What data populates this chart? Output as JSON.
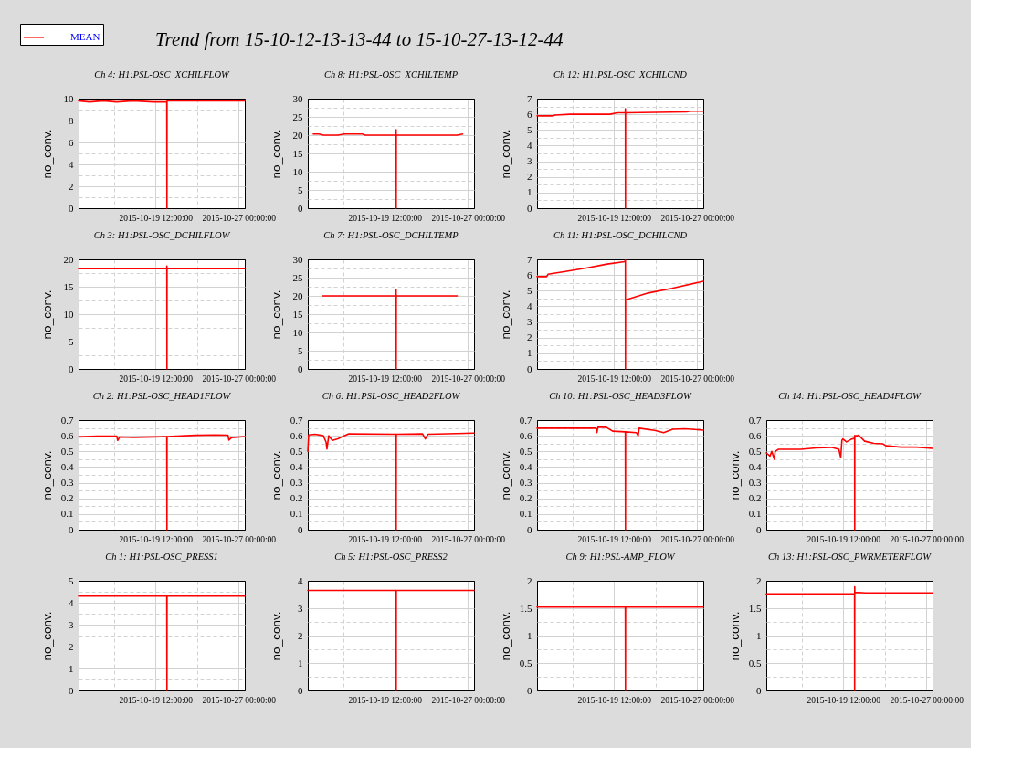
{
  "chart_data": [
    {
      "type": "other",
      "title": "Trend from 15-10-12-13-13-44 to 15-10-27-13-12-44"
    },
    {
      "type": "line",
      "title": "Ch 4: H1:PSL-OSC_XCHILFLOW",
      "ylabel": "no_conv.",
      "legend": "top left",
      "grid": true,
      "xlim": [
        "2015-10-12T13:13",
        "2015-10-27T13:12"
      ],
      "xticks": [
        {
          "value": "2015-10-15T18:00",
          "label": null
        },
        {
          "value": "2015-10-19T12:00",
          "label": "2015-10-19 12:00:00"
        },
        {
          "value": "2015-10-23T06:00",
          "label": null
        },
        {
          "value": "2015-10-27T00:00",
          "label": "2015-10-27 00:00:00"
        }
      ],
      "ylim": [
        0,
        10
      ],
      "yticks": [
        0,
        {
          "value": 1,
          "label": null
        },
        2,
        {
          "value": 3,
          "label": null
        },
        4,
        {
          "value": 5,
          "label": null
        },
        6,
        {
          "value": 7,
          "label": null
        },
        8,
        {
          "value": 9,
          "label": null
        },
        10
      ],
      "x": [
        "2015-10-12T13:13",
        "2015-10-13T12:55",
        "2015-10-14T18:30",
        "2015-10-16T00:00",
        "2015-10-17T11:35",
        "2015-10-19T07:00",
        "2015-10-20T12:20",
        "2015-10-20T12:40",
        "2015-10-20T12:50",
        "2015-10-22T13:55",
        "2015-10-24T17:13",
        "2015-10-26T08:35",
        "2015-10-27T13:12"
      ],
      "series": [
        {
          "name": "MEAN",
          "color": "#ff0000",
          "values": [
            9.8,
            9.7,
            9.8,
            9.7,
            9.8,
            9.7,
            9.7,
            0,
            9.8,
            9.8,
            9.8,
            9.8,
            9.8
          ]
        }
      ]
    },
    {
      "type": "line",
      "title": "Ch 8: H1:PSL-OSC_XCHILTEMP",
      "ylabel": "no_conv.",
      "grid": true,
      "xlim": [
        "2015-10-12T13:13",
        "2015-10-27T13:12"
      ],
      "xticks": [
        {
          "value": "2015-10-15T18:00",
          "label": null
        },
        {
          "value": "2015-10-19T12:00",
          "label": "2015-10-19 12:00:00"
        },
        {
          "value": "2015-10-23T06:00",
          "label": null
        },
        {
          "value": "2015-10-27T00:00",
          "label": "2015-10-27 00:00:00"
        }
      ],
      "ylim": [
        0,
        30
      ],
      "yticks": [
        0,
        {
          "value": 2.5,
          "label": null
        },
        5,
        {
          "value": 7.5,
          "label": null
        },
        10,
        {
          "value": 12.5,
          "label": null
        },
        15,
        {
          "value": 17.5,
          "label": null
        },
        20,
        {
          "value": 22.5,
          "label": null
        },
        25,
        {
          "value": 27.5,
          "label": null
        },
        30
      ],
      "x": [
        "2015-10-13T01:00",
        "2015-10-13T12:55",
        "2015-10-13T22:45",
        "2015-10-15T06:20",
        "2015-10-15T20:07",
        "2015-10-17T11:35",
        "2015-10-17T17:30",
        "2015-10-20T12:20",
        "2015-10-20T12:30",
        "2015-10-20T12:40",
        "2015-10-20T12:50",
        "2015-10-26T00:45",
        "2015-10-26T12:30"
      ],
      "series": [
        {
          "color": "#ff0000",
          "values": [
            20.3,
            20.3,
            20,
            20,
            20.3,
            20.3,
            20,
            20,
            21.5,
            0,
            20,
            20,
            20.3
          ]
        }
      ]
    },
    {
      "type": "line",
      "title": "Ch 12: H1:PSL-OSC_XCHILCND",
      "ylabel": "no_conv.",
      "grid": true,
      "xlim": [
        "2015-10-12T13:13",
        "2015-10-27T13:12"
      ],
      "xticks": [
        {
          "value": "2015-10-15T18:00",
          "label": null
        },
        {
          "value": "2015-10-19T12:00",
          "label": "2015-10-19 12:00:00"
        },
        {
          "value": "2015-10-23T06:00",
          "label": null
        },
        {
          "value": "2015-10-27T00:00",
          "label": "2015-10-27 00:00:00"
        }
      ],
      "ylim": [
        0,
        7
      ],
      "yticks": [
        0,
        {
          "value": 0.5,
          "label": null
        },
        1,
        {
          "value": 1.5,
          "label": null
        },
        2,
        {
          "value": 2.5,
          "label": null
        },
        3,
        {
          "value": 3.5,
          "label": null
        },
        4,
        {
          "value": 4.5,
          "label": null
        },
        5,
        {
          "value": 5.5,
          "label": null
        },
        6,
        {
          "value": 6.5,
          "label": null
        },
        7
      ],
      "x": [
        "2015-10-12T13:13",
        "2015-10-13T22:45",
        "2015-10-14T04:45",
        "2015-10-15T12:13",
        "2015-10-19T03:00",
        "2015-10-19T18:50",
        "2015-10-20T12:20",
        "2015-10-20T12:30",
        "2015-10-20T12:40",
        "2015-10-20T12:50",
        "2015-10-26T00:45",
        "2015-10-26T08:35",
        "2015-10-27T13:12"
      ],
      "series": [
        {
          "color": "#ff0000",
          "values": [
            5.9,
            5.9,
            5.95,
            6,
            6,
            6.1,
            6.1,
            6.35,
            0,
            6.1,
            6.15,
            6.2,
            6.2
          ]
        }
      ]
    },
    {
      "type": "line",
      "title": "Ch 3: H1:PSL-OSC_DCHILFLOW",
      "ylabel": "no_conv.",
      "grid": true,
      "xlim": [
        "2015-10-12T13:13",
        "2015-10-27T13:12"
      ],
      "xticks": [
        {
          "value": "2015-10-15T18:00",
          "label": null
        },
        {
          "value": "2015-10-19T12:00",
          "label": "2015-10-19 12:00:00"
        },
        {
          "value": "2015-10-23T06:00",
          "label": null
        },
        {
          "value": "2015-10-27T00:00",
          "label": "2015-10-27 00:00:00"
        }
      ],
      "ylim": [
        0,
        20
      ],
      "yticks": [
        0,
        {
          "value": 2.5,
          "label": null
        },
        5,
        {
          "value": 7.5,
          "label": null
        },
        10,
        {
          "value": 12.5,
          "label": null
        },
        15,
        {
          "value": 17.5,
          "label": null
        },
        20
      ],
      "x": [
        "2015-10-12T13:13",
        "2015-10-20T12:20",
        "2015-10-20T12:30",
        "2015-10-20T12:40",
        "2015-10-20T12:50",
        "2015-10-27T13:12"
      ],
      "series": [
        {
          "color": "#ff0000",
          "values": [
            18.3,
            18.3,
            18.8,
            0,
            18.3,
            18.3
          ]
        }
      ]
    },
    {
      "type": "line",
      "title": "Ch 7: H1:PSL-OSC_DCHILTEMP",
      "ylabel": "no_conv.",
      "grid": true,
      "xlim": [
        "2015-10-12T13:13",
        "2015-10-27T13:12"
      ],
      "xticks": [
        {
          "value": "2015-10-15T18:00",
          "label": null
        },
        {
          "value": "2015-10-19T12:00",
          "label": "2015-10-19 12:00:00"
        },
        {
          "value": "2015-10-23T06:00",
          "label": null
        },
        {
          "value": "2015-10-27T00:00",
          "label": "2015-10-27 00:00:00"
        }
      ],
      "ylim": [
        0,
        30
      ],
      "yticks": [
        0,
        {
          "value": 2.5,
          "label": null
        },
        5,
        {
          "value": 7.5,
          "label": null
        },
        10,
        {
          "value": 12.5,
          "label": null
        },
        15,
        {
          "value": 17.5,
          "label": null
        },
        20,
        {
          "value": 22.5,
          "label": null
        },
        25,
        {
          "value": 27.5,
          "label": null
        },
        30
      ],
      "x": [
        "2015-10-13T20:45",
        "2015-10-20T12:20",
        "2015-10-20T12:30",
        "2015-10-20T12:40",
        "2015-10-20T12:50",
        "2015-10-26T00:45"
      ],
      "series": [
        {
          "color": "#ff0000",
          "values": [
            20,
            20,
            21.7,
            0,
            20,
            20
          ]
        }
      ]
    },
    {
      "type": "line",
      "title": "Ch 11: H1:PSL-OSC_DCHILCND",
      "ylabel": "no_conv.",
      "grid": true,
      "xlim": [
        "2015-10-12T13:13",
        "2015-10-27T13:12"
      ],
      "xticks": [
        {
          "value": "2015-10-15T18:00",
          "label": null
        },
        {
          "value": "2015-10-19T12:00",
          "label": "2015-10-19 12:00:00"
        },
        {
          "value": "2015-10-23T06:00",
          "label": null
        },
        {
          "value": "2015-10-27T00:00",
          "label": "2015-10-27 00:00:00"
        }
      ],
      "ylim": [
        0,
        7
      ],
      "yticks": [
        0,
        {
          "value": 0.5,
          "label": null
        },
        1,
        {
          "value": 1.5,
          "label": null
        },
        2,
        {
          "value": 2.5,
          "label": null
        },
        3,
        {
          "value": 3.5,
          "label": null
        },
        4,
        {
          "value": 4.5,
          "label": null
        },
        5,
        {
          "value": 5.5,
          "label": null
        },
        6,
        {
          "value": 6.5,
          "label": null
        },
        7
      ],
      "x": [
        "2015-10-12T13:13",
        "2015-10-13T10:00",
        "2015-10-13T12:55",
        "2015-10-14T20:25",
        "2015-10-16T23:45",
        "2015-10-18T21:05",
        "2015-10-20T10:35",
        "2015-10-20T12:30",
        "2015-10-20T12:40",
        "2015-10-20T12:50",
        "2015-10-22T13:55",
        "2015-10-24T17:13",
        "2015-10-27T13:12"
      ],
      "series": [
        {
          "color": "#ff0000",
          "values": [
            5.9,
            5.9,
            6.05,
            6.2,
            6.45,
            6.7,
            6.85,
            6.95,
            0,
            4.4,
            4.85,
            5.15,
            5.6
          ]
        }
      ]
    },
    {
      "type": "line",
      "title": "Ch 2: H1:PSL-OSC_HEAD1FLOW",
      "ylabel": "no_conv.",
      "grid": true,
      "xlim": [
        "2015-10-12T13:13",
        "2015-10-27T13:12"
      ],
      "xticks": [
        {
          "value": "2015-10-15T18:00",
          "label": null
        },
        {
          "value": "2015-10-19T12:00",
          "label": "2015-10-19 12:00:00"
        },
        {
          "value": "2015-10-23T06:00",
          "label": null
        },
        {
          "value": "2015-10-27T00:00",
          "label": "2015-10-27 00:00:00"
        }
      ],
      "ylim": [
        0,
        0.7
      ],
      "yticks": [
        0,
        {
          "value": 0.05,
          "label": null
        },
        0.1,
        {
          "value": 0.15,
          "label": null
        },
        0.2,
        {
          "value": 0.25,
          "label": null
        },
        0.3,
        {
          "value": 0.35,
          "label": null
        },
        0.4,
        {
          "value": 0.45,
          "label": null
        },
        0.5,
        {
          "value": 0.55,
          "label": null
        },
        0.6,
        {
          "value": 0.65,
          "label": null
        },
        0.7
      ],
      "x": [
        "2015-10-12T13:13",
        "2015-10-14T04:45",
        "2015-10-16T00:00",
        "2015-10-16T02:00",
        "2015-10-16T06:00",
        "2015-10-17T11:35",
        "2015-10-19T08:55",
        "2015-10-20T12:20",
        "2015-10-20T12:40",
        "2015-10-20T12:50",
        "2015-10-23T01:45",
        "2015-10-24T21:05",
        "2015-10-26T00:45",
        "2015-10-26T02:45",
        "2015-10-26T08:35",
        "2015-10-27T13:12"
      ],
      "series": [
        {
          "color": "#ff0000",
          "values": [
            0.593,
            0.597,
            0.597,
            0.57,
            0.592,
            0.59,
            0.593,
            0.595,
            0,
            0.595,
            0.603,
            0.605,
            0.604,
            0.572,
            0.588,
            0.595
          ]
        }
      ]
    },
    {
      "type": "line",
      "title": "Ch 6: H1:PSL-OSC_HEAD2FLOW",
      "ylabel": "no_conv.",
      "grid": true,
      "xlim": [
        "2015-10-12T13:13",
        "2015-10-27T13:12"
      ],
      "xticks": [
        {
          "value": "2015-10-15T18:00",
          "label": null
        },
        {
          "value": "2015-10-19T12:00",
          "label": "2015-10-19 12:00:00"
        },
        {
          "value": "2015-10-23T06:00",
          "label": null
        },
        {
          "value": "2015-10-27T00:00",
          "label": "2015-10-27 00:00:00"
        }
      ],
      "ylim": [
        0,
        0.7
      ],
      "yticks": [
        0,
        {
          "value": 0.05,
          "label": null
        },
        0.1,
        {
          "value": 0.15,
          "label": null
        },
        0.2,
        {
          "value": 0.25,
          "label": null
        },
        0.3,
        {
          "value": 0.35,
          "label": null
        },
        0.4,
        {
          "value": 0.45,
          "label": null
        },
        0.5,
        {
          "value": 0.55,
          "label": null
        },
        0.6,
        {
          "value": 0.65,
          "label": null
        },
        0.7
      ],
      "x": [
        "2015-10-12T13:13",
        "2015-10-12T15:10",
        "2015-10-13T05:00",
        "2015-10-13T22:45",
        "2015-10-14T04:45",
        "2015-10-14T06:40",
        "2015-10-14T10:35",
        "2015-10-14T18:30",
        "2015-10-15T06:20",
        "2015-10-15T20:07",
        "2015-10-16T06:00",
        "2015-10-20T12:20",
        "2015-10-20T12:40",
        "2015-10-20T12:50",
        "2015-10-22T21:45",
        "2015-10-23T03:45",
        "2015-10-23T09:35",
        "2015-10-27T13:12"
      ],
      "series": [
        {
          "color": "#ff0000",
          "values": [
            0.5,
            0.605,
            0.61,
            0.6,
            0.56,
            0.515,
            0.6,
            0.57,
            0.58,
            0.6,
            0.612,
            0.61,
            0,
            0.61,
            0.612,
            0.58,
            0.61,
            0.617
          ]
        }
      ]
    },
    {
      "type": "line",
      "title": "Ch 10: H1:PSL-OSC_HEAD3FLOW",
      "ylabel": "no_conv.",
      "grid": true,
      "xlim": [
        "2015-10-12T13:13",
        "2015-10-27T13:12"
      ],
      "xticks": [
        {
          "value": "2015-10-15T18:00",
          "label": null
        },
        {
          "value": "2015-10-19T12:00",
          "label": "2015-10-19 12:00:00"
        },
        {
          "value": "2015-10-23T06:00",
          "label": null
        },
        {
          "value": "2015-10-27T00:00",
          "label": "2015-10-27 00:00:00"
        }
      ],
      "ylim": [
        0,
        0.7
      ],
      "yticks": [
        0,
        {
          "value": 0.05,
          "label": null
        },
        0.1,
        {
          "value": 0.15,
          "label": null
        },
        0.2,
        {
          "value": 0.25,
          "label": null
        },
        0.3,
        {
          "value": 0.35,
          "label": null
        },
        0.4,
        {
          "value": 0.45,
          "label": null
        },
        0.5,
        {
          "value": 0.55,
          "label": null
        },
        0.6,
        {
          "value": 0.65,
          "label": null
        },
        0.7
      ],
      "x": [
        "2015-10-12T13:13",
        "2015-10-17T21:00",
        "2015-10-17T22:50",
        "2015-10-18T01:00",
        "2015-10-18T19:10",
        "2015-10-19T08:55",
        "2015-10-20T12:20",
        "2015-10-20T12:40",
        "2015-10-20T12:50",
        "2015-10-21T12:13",
        "2015-10-21T16:13",
        "2015-10-21T18:13",
        "2015-10-23T03:45",
        "2015-10-23T23:25",
        "2015-10-24T19:05",
        "2015-10-25T20:50",
        "2015-10-27T13:12"
      ],
      "series": [
        {
          "color": "#ff0000",
          "values": [
            0.648,
            0.648,
            0.62,
            0.654,
            0.654,
            0.629,
            0.625,
            0,
            0.625,
            0.62,
            0.6,
            0.648,
            0.634,
            0.62,
            0.642,
            0.645,
            0.636
          ]
        }
      ]
    },
    {
      "type": "line",
      "title": "Ch 14: H1:PSL-OSC_HEAD4FLOW",
      "ylabel": "no_conv.",
      "grid": true,
      "xlim": [
        "2015-10-12T13:13",
        "2015-10-27T13:12"
      ],
      "xticks": [
        {
          "value": "2015-10-15T18:00",
          "label": null
        },
        {
          "value": "2015-10-19T12:00",
          "label": "2015-10-19 12:00:00"
        },
        {
          "value": "2015-10-23T06:00",
          "label": null
        },
        {
          "value": "2015-10-27T00:00",
          "label": "2015-10-27 00:00:00"
        }
      ],
      "ylim": [
        0,
        0.7
      ],
      "yticks": [
        0,
        {
          "value": 0.05,
          "label": null
        },
        0.1,
        {
          "value": 0.15,
          "label": null
        },
        0.2,
        {
          "value": 0.25,
          "label": null
        },
        0.3,
        {
          "value": 0.35,
          "label": null
        },
        0.4,
        {
          "value": 0.45,
          "label": null
        },
        0.5,
        {
          "value": 0.55,
          "label": null
        },
        0.6,
        {
          "value": 0.65,
          "label": null
        },
        0.7
      ],
      "x": [
        "2015-10-12T13:13",
        "2015-10-12T21:05",
        "2015-10-13T01:00",
        "2015-10-13T06:25",
        "2015-10-13T08:25",
        "2015-10-13T14:50",
        "2015-10-15T16:13",
        "2015-10-17T01:05",
        "2015-10-18T09:50",
        "2015-10-19T02:25",
        "2015-10-19T06:25",
        "2015-10-19T08:55",
        "2015-10-19T10:55",
        "2015-10-19T18:50",
        "2015-10-20T04:40",
        "2015-10-20T12:20",
        "2015-10-20T12:30",
        "2015-10-20T12:40",
        "2015-10-20T12:50",
        "2015-10-20T17:55",
        "2015-10-20T21:00",
        "2015-10-21T10:15",
        "2015-10-22T06:00",
        "2015-10-23T01:45",
        "2015-10-23T08:15",
        "2015-10-24T17:13",
        "2015-10-26T02:05",
        "2015-10-27T13:12"
      ],
      "series": [
        {
          "color": "#ff0000",
          "values": [
            0.49,
            0.47,
            0.5,
            0.45,
            0.5,
            0.513,
            0.513,
            0.522,
            0.526,
            0.513,
            0.461,
            0.571,
            0.58,
            0.561,
            0.577,
            0.584,
            0.6,
            0,
            0.6,
            0.6,
            0.604,
            0.565,
            0.551,
            0.548,
            0.536,
            0.527,
            0.527,
            0.519
          ]
        }
      ]
    },
    {
      "type": "line",
      "title": "Ch 1: H1:PSL-OSC_PRESS1",
      "ylabel": "no_conv.",
      "grid": true,
      "xlim": [
        "2015-10-12T13:13",
        "2015-10-27T13:12"
      ],
      "xticks": [
        {
          "value": "2015-10-15T18:00",
          "label": null
        },
        {
          "value": "2015-10-19T12:00",
          "label": "2015-10-19 12:00:00"
        },
        {
          "value": "2015-10-23T06:00",
          "label": null
        },
        {
          "value": "2015-10-27T00:00",
          "label": "2015-10-27 00:00:00"
        }
      ],
      "ylim": [
        0,
        5
      ],
      "yticks": [
        0,
        {
          "value": 0.5,
          "label": null
        },
        1,
        {
          "value": 1.5,
          "label": null
        },
        2,
        {
          "value": 2.5,
          "label": null
        },
        3,
        {
          "value": 3.5,
          "label": null
        },
        4,
        {
          "value": 4.5,
          "label": null
        },
        5
      ],
      "x": [
        "2015-10-12T13:13",
        "2015-10-20T12:20",
        "2015-10-20T12:40",
        "2015-10-20T12:50",
        "2015-10-27T13:12"
      ],
      "series": [
        {
          "color": "#ff0000",
          "values": [
            4.3,
            4.3,
            0,
            4.3,
            4.3
          ]
        }
      ]
    },
    {
      "type": "line",
      "title": "Ch 5: H1:PSL-OSC_PRESS2",
      "ylabel": "no_conv.",
      "grid": true,
      "xlim": [
        "2015-10-12T13:13",
        "2015-10-27T13:12"
      ],
      "xticks": [
        {
          "value": "2015-10-15T18:00",
          "label": null
        },
        {
          "value": "2015-10-19T12:00",
          "label": "2015-10-19 12:00:00"
        },
        {
          "value": "2015-10-23T06:00",
          "label": null
        },
        {
          "value": "2015-10-27T00:00",
          "label": "2015-10-27 00:00:00"
        }
      ],
      "ylim": [
        0,
        4
      ],
      "yticks": [
        0,
        {
          "value": 0.5,
          "label": null
        },
        1,
        {
          "value": 1.5,
          "label": null
        },
        2,
        {
          "value": 2.5,
          "label": null
        },
        3,
        {
          "value": 3.5,
          "label": null
        },
        4
      ],
      "x": [
        "2015-10-12T13:13",
        "2015-10-20T12:20",
        "2015-10-20T12:40",
        "2015-10-20T12:50",
        "2015-10-27T13:12"
      ],
      "series": [
        {
          "color": "#ff0000",
          "values": [
            3.65,
            3.65,
            0,
            3.65,
            3.65
          ]
        }
      ]
    },
    {
      "type": "line",
      "title": "Ch 9: H1:PSL-AMP_FLOW",
      "ylabel": "no_conv.",
      "grid": true,
      "xlim": [
        "2015-10-12T13:13",
        "2015-10-27T13:12"
      ],
      "xticks": [
        {
          "value": "2015-10-15T18:00",
          "label": null
        },
        {
          "value": "2015-10-19T12:00",
          "label": "2015-10-19 12:00:00"
        },
        {
          "value": "2015-10-23T06:00",
          "label": null
        },
        {
          "value": "2015-10-27T00:00",
          "label": "2015-10-27 00:00:00"
        }
      ],
      "ylim": [
        0,
        2
      ],
      "yticks": [
        0,
        {
          "value": 0.25,
          "label": null
        },
        0.5,
        {
          "value": 0.75,
          "label": null
        },
        1,
        {
          "value": 1.25,
          "label": null
        },
        1.5,
        {
          "value": 1.75,
          "label": null
        },
        2
      ],
      "x": [
        "2015-10-12T13:13",
        "2015-10-20T12:20",
        "2015-10-20T12:40",
        "2015-10-20T12:50",
        "2015-10-27T13:12"
      ],
      "series": [
        {
          "color": "#ff0000",
          "values": [
            1.52,
            1.52,
            0,
            1.52,
            1.52
          ]
        }
      ]
    },
    {
      "type": "line",
      "title": "Ch 13: H1:PSL-OSC_PWRMETERFLOW",
      "ylabel": "no_conv.",
      "grid": true,
      "xlim": [
        "2015-10-12T13:13",
        "2015-10-27T13:12"
      ],
      "xticks": [
        {
          "value": "2015-10-15T18:00",
          "label": null
        },
        {
          "value": "2015-10-19T12:00",
          "label": "2015-10-19 12:00:00"
        },
        {
          "value": "2015-10-23T06:00",
          "label": null
        },
        {
          "value": "2015-10-27T00:00",
          "label": "2015-10-27 00:00:00"
        }
      ],
      "ylim": [
        0,
        2
      ],
      "yticks": [
        0,
        {
          "value": 0.25,
          "label": null
        },
        0.5,
        {
          "value": 0.75,
          "label": null
        },
        1,
        {
          "value": 1.25,
          "label": null
        },
        1.5,
        {
          "value": 1.75,
          "label": null
        },
        2
      ],
      "x": [
        "2015-10-12T13:13",
        "2015-10-20T12:20",
        "2015-10-20T12:30",
        "2015-10-20T12:40",
        "2015-10-20T12:50",
        "2015-10-21T12:13",
        "2015-10-27T13:12"
      ],
      "series": [
        {
          "color": "#ff0000",
          "values": [
            1.76,
            1.76,
            0,
            1.89,
            1.79,
            1.78,
            1.78
          ]
        }
      ]
    }
  ]
}
